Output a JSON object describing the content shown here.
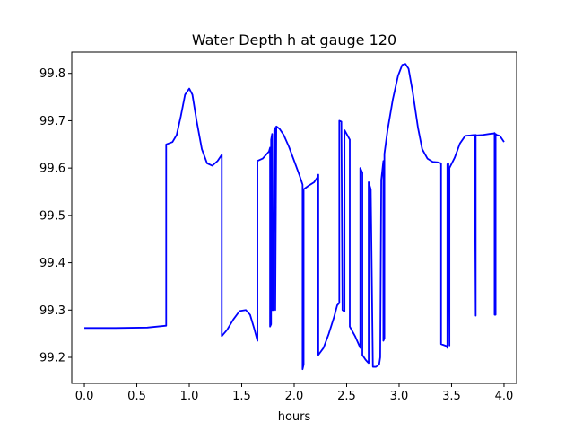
{
  "chart_data": {
    "type": "line",
    "title": "Water Depth h at gauge 120",
    "xlabel": "hours",
    "ylabel": "",
    "xlim": [
      -0.12,
      4.12
    ],
    "ylim": [
      99.145,
      99.845
    ],
    "xticks": [
      0.0,
      0.5,
      1.0,
      1.5,
      2.0,
      2.5,
      3.0,
      3.5,
      4.0
    ],
    "xtick_labels": [
      "0.0",
      "0.5",
      "1.0",
      "1.5",
      "2.0",
      "2.5",
      "3.0",
      "3.5",
      "4.0"
    ],
    "yticks": [
      99.2,
      99.3,
      99.4,
      99.5,
      99.6,
      99.7,
      99.8
    ],
    "ytick_labels": [
      "99.2",
      "99.3",
      "99.4",
      "99.5",
      "99.6",
      "99.7",
      "99.8"
    ],
    "grid": false,
    "series": [
      {
        "color": "#0000ff",
        "x": [
          0.0,
          0.3,
          0.6,
          0.78,
          0.78,
          0.84,
          0.88,
          0.92,
          0.96,
          1.0,
          1.03,
          1.07,
          1.12,
          1.17,
          1.22,
          1.27,
          1.31,
          1.31,
          1.36,
          1.42,
          1.48,
          1.54,
          1.58,
          1.62,
          1.65,
          1.65,
          1.7,
          1.76,
          1.77,
          1.77,
          1.78,
          1.78,
          1.79,
          1.79,
          1.8,
          1.81,
          1.81,
          1.82,
          1.82,
          1.83,
          1.86,
          1.9,
          1.95,
          2.0,
          2.05,
          2.08,
          2.08,
          2.09,
          2.09,
          2.14,
          2.19,
          2.22,
          2.23,
          2.23,
          2.28,
          2.33,
          2.38,
          2.41,
          2.43,
          2.43,
          2.45,
          2.46,
          2.46,
          2.48,
          2.48,
          2.53,
          2.53,
          2.58,
          2.63,
          2.63,
          2.65,
          2.65,
          2.68,
          2.7,
          2.71,
          2.71,
          2.73,
          2.75,
          2.78,
          2.81,
          2.82,
          2.83,
          2.84,
          2.85,
          2.85,
          2.86,
          2.86,
          2.89,
          2.94,
          2.99,
          3.03,
          3.06,
          3.09,
          3.13,
          3.18,
          3.22,
          3.27,
          3.32,
          3.37,
          3.4,
          3.4,
          3.45,
          3.46,
          3.46,
          3.47,
          3.48,
          3.48,
          3.53,
          3.58,
          3.63,
          3.68,
          3.72,
          3.73,
          3.73,
          3.74,
          3.8,
          3.86,
          3.9,
          3.91,
          3.91,
          3.92,
          3.92,
          3.93,
          3.96,
          4.0
        ],
        "y": [
          99.262,
          99.262,
          99.263,
          99.267,
          99.65,
          99.655,
          99.67,
          99.71,
          99.755,
          99.768,
          99.755,
          99.7,
          99.64,
          99.61,
          99.605,
          99.615,
          99.628,
          99.245,
          99.258,
          99.28,
          99.298,
          99.3,
          99.29,
          99.26,
          99.235,
          99.615,
          99.62,
          99.635,
          99.643,
          99.265,
          99.27,
          99.66,
          99.672,
          99.3,
          99.3,
          99.675,
          99.68,
          99.685,
          99.3,
          99.688,
          99.683,
          99.67,
          99.645,
          99.615,
          99.585,
          99.565,
          99.175,
          99.185,
          99.555,
          99.563,
          99.57,
          99.58,
          99.586,
          99.205,
          99.22,
          99.25,
          99.285,
          99.31,
          99.315,
          99.7,
          99.698,
          99.31,
          99.3,
          99.297,
          99.68,
          99.66,
          99.265,
          99.245,
          99.22,
          99.6,
          99.59,
          99.205,
          99.195,
          99.19,
          99.188,
          99.57,
          99.555,
          99.18,
          99.18,
          99.185,
          99.2,
          99.575,
          99.595,
          99.615,
          99.235,
          99.24,
          99.63,
          99.68,
          99.745,
          99.795,
          99.818,
          99.82,
          99.81,
          99.76,
          99.685,
          99.64,
          99.62,
          99.613,
          99.612,
          99.61,
          99.228,
          99.224,
          99.22,
          99.608,
          99.61,
          99.225,
          99.6,
          99.622,
          99.652,
          99.668,
          99.669,
          99.67,
          99.288,
          99.67,
          99.669,
          99.67,
          99.672,
          99.673,
          99.674,
          99.29,
          99.29,
          99.672,
          99.67,
          99.668,
          99.655
        ]
      }
    ]
  }
}
